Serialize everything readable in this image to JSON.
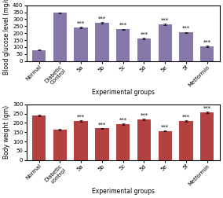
{
  "chart_data": [
    {
      "type": "bar",
      "x_label": "Experimental groups",
      "y_label": "Blood glucose level (mg/dL)",
      "categories": [
        "Normal",
        "Diabetic\nControl",
        "5a",
        "5b",
        "5c",
        "5d",
        "5e",
        "5f",
        "Metformin"
      ],
      "values": [
        80,
        345,
        240,
        275,
        228,
        163,
        265,
        205,
        105
      ],
      "errors": [
        4,
        5,
        5,
        5,
        4,
        5,
        5,
        4,
        4
      ],
      "annotations": [
        null,
        null,
        "***",
        "***",
        "***",
        "***",
        "***",
        "***",
        "***"
      ],
      "color": "#8878aa",
      "ylim": [
        0,
        400
      ],
      "yticks": [
        0,
        50,
        100,
        150,
        200,
        250,
        300,
        350,
        400
      ],
      "grid": false
    },
    {
      "type": "bar",
      "x_label": "Experimental groups",
      "y_label": "Body weight (gm)",
      "categories": [
        "Normal",
        "Diabetic\ncontrol",
        "5a",
        "5b",
        "5c",
        "5d",
        "5e",
        "5f",
        "Metformin"
      ],
      "values": [
        238,
        163,
        210,
        170,
        193,
        220,
        157,
        210,
        255
      ],
      "errors": [
        4,
        3,
        4,
        3,
        4,
        4,
        3,
        4,
        4
      ],
      "annotations": [
        null,
        null,
        "***",
        "***",
        "***",
        "***",
        "***",
        "***",
        "***"
      ],
      "color": "#b54040",
      "ylim": [
        0,
        300
      ],
      "yticks": [
        0,
        50,
        100,
        150,
        200,
        250,
        300
      ],
      "grid": false
    }
  ]
}
